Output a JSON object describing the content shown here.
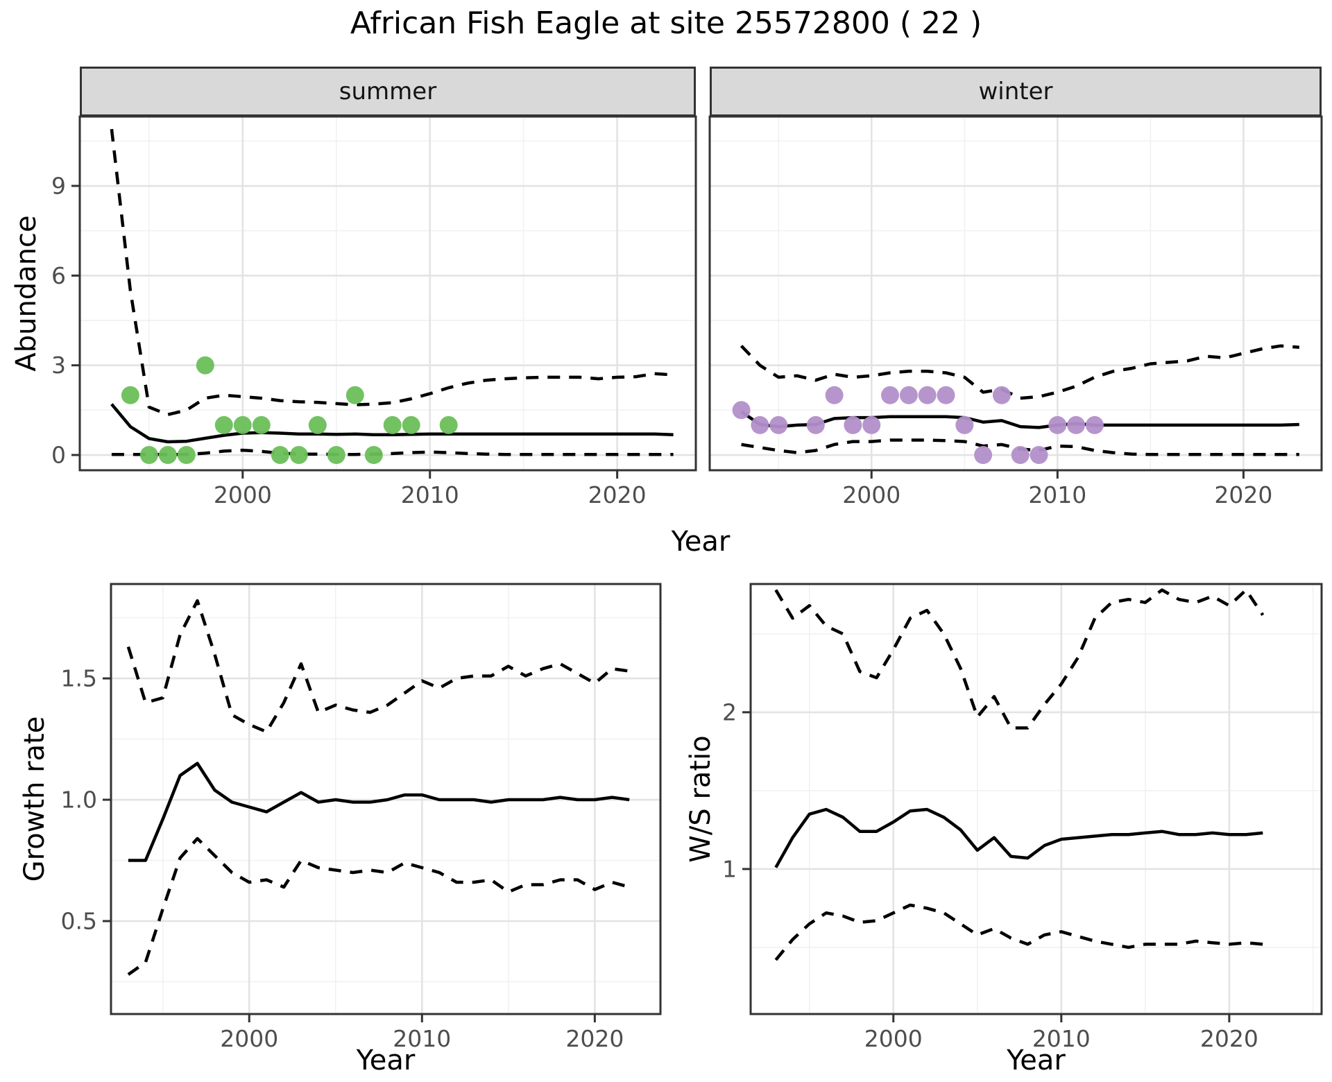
{
  "title": "African Fish Eagle at site 25572800 ( 22 )",
  "facets": {
    "summer_label": "summer",
    "winter_label": "winter"
  },
  "axis_labels": {
    "abundance": "Abundance",
    "year": "Year",
    "growth_rate": "Growth rate",
    "ws_ratio": "W/S ratio"
  },
  "colors": {
    "summer_points": "#6abf5a",
    "winter_points": "#b28fc9",
    "line": "#000000",
    "strip_bg": "#d9d9d9",
    "grid_major": "#e3e3e3",
    "grid_minor": "#f1f1f1",
    "panel_border": "#333333",
    "tick_text": "#4d4d4d"
  },
  "chart_data": [
    {
      "id": "abundance_summer",
      "type": "line",
      "facet": "summer",
      "xlabel": "Year",
      "ylabel": "Abundance",
      "xlim": [
        1991.3,
        2024.2
      ],
      "ylim": [
        -0.51,
        11.32
      ],
      "x_ticks": [
        2000,
        2010,
        2020
      ],
      "x_tick_labels": [
        "2000",
        "2010",
        "2020"
      ],
      "x_minor": [
        1995,
        2005,
        2015
      ],
      "y_ticks": [
        0,
        3,
        6,
        9
      ],
      "y_tick_labels": [
        "0",
        "3",
        "6",
        "9"
      ],
      "y_minor": [
        1.5,
        4.5,
        7.5,
        10.5
      ],
      "years": [
        1993,
        1994,
        1995,
        1996,
        1997,
        1998,
        1999,
        2000,
        2001,
        2002,
        2003,
        2004,
        2005,
        2006,
        2007,
        2008,
        2009,
        2010,
        2011,
        2012,
        2013,
        2014,
        2015,
        2016,
        2017,
        2018,
        2019,
        2020,
        2021,
        2022,
        2023
      ],
      "series": [
        {
          "name": "median",
          "style": "solid",
          "values": [
            1.7,
            0.95,
            0.55,
            0.44,
            0.46,
            0.56,
            0.66,
            0.73,
            0.75,
            0.73,
            0.7,
            0.7,
            0.69,
            0.7,
            0.68,
            0.68,
            0.69,
            0.7,
            0.7,
            0.7,
            0.7,
            0.7,
            0.7,
            0.7,
            0.7,
            0.7,
            0.7,
            0.7,
            0.7,
            0.7,
            0.68
          ]
        },
        {
          "name": "upper_ci",
          "style": "dashed",
          "values": [
            10.9,
            5.5,
            1.6,
            1.35,
            1.5,
            1.9,
            2.0,
            1.95,
            1.9,
            1.82,
            1.78,
            1.76,
            1.72,
            1.68,
            1.7,
            1.75,
            1.88,
            2.05,
            2.25,
            2.4,
            2.5,
            2.55,
            2.58,
            2.6,
            2.6,
            2.6,
            2.55,
            2.6,
            2.62,
            2.72,
            2.68
          ]
        },
        {
          "name": "lower_ci",
          "style": "dashed",
          "values": [
            0.02,
            0.02,
            0.02,
            0.02,
            0.02,
            0.06,
            0.13,
            0.16,
            0.12,
            0.06,
            0.03,
            0.03,
            0.02,
            0.02,
            0.03,
            0.05,
            0.08,
            0.1,
            0.08,
            0.05,
            0.03,
            0.02,
            0.02,
            0.02,
            0.02,
            0.02,
            0.02,
            0.02,
            0.02,
            0.02,
            0.02
          ]
        }
      ],
      "points": {
        "color": "#6abf5a",
        "data": [
          [
            1994,
            2
          ],
          [
            1995,
            0
          ],
          [
            1996,
            0
          ],
          [
            1997,
            0
          ],
          [
            1998,
            3
          ],
          [
            1999,
            1
          ],
          [
            2000,
            1
          ],
          [
            2001,
            1
          ],
          [
            2002,
            0
          ],
          [
            2003,
            0
          ],
          [
            2004,
            1
          ],
          [
            2005,
            0
          ],
          [
            2006,
            2
          ],
          [
            2007,
            0
          ],
          [
            2008,
            1
          ],
          [
            2009,
            1
          ],
          [
            2011,
            1
          ]
        ]
      }
    },
    {
      "id": "abundance_winter",
      "type": "line",
      "facet": "winter",
      "xlabel": "Year",
      "ylabel": "Abundance",
      "xlim": [
        1991.3,
        2024.2
      ],
      "ylim": [
        -0.51,
        11.32
      ],
      "x_ticks": [
        2000,
        2010,
        2020
      ],
      "x_tick_labels": [
        "2000",
        "2010",
        "2020"
      ],
      "x_minor": [
        1995,
        2005,
        2015
      ],
      "y_ticks": [
        0,
        3,
        6,
        9
      ],
      "y_tick_labels": [
        "0",
        "3",
        "6",
        "9"
      ],
      "y_minor": [
        1.5,
        4.5,
        7.5,
        10.5
      ],
      "years": [
        1993,
        1994,
        1995,
        1996,
        1997,
        1998,
        1999,
        2000,
        2001,
        2002,
        2003,
        2004,
        2005,
        2006,
        2007,
        2008,
        2009,
        2010,
        2011,
        2012,
        2013,
        2014,
        2015,
        2016,
        2017,
        2018,
        2019,
        2020,
        2021,
        2022,
        2023
      ],
      "series": [
        {
          "name": "median",
          "style": "solid",
          "values": [
            1.45,
            1.02,
            0.95,
            1.0,
            1.02,
            1.22,
            1.25,
            1.25,
            1.28,
            1.28,
            1.28,
            1.28,
            1.25,
            1.1,
            1.15,
            0.95,
            0.92,
            1.0,
            1.05,
            1.0,
            1.0,
            1.0,
            1.0,
            1.0,
            1.0,
            1.0,
            1.0,
            1.0,
            1.0,
            1.0,
            1.02
          ]
        },
        {
          "name": "upper_ci",
          "style": "dashed",
          "values": [
            3.65,
            3.0,
            2.6,
            2.65,
            2.5,
            2.7,
            2.6,
            2.65,
            2.75,
            2.8,
            2.8,
            2.75,
            2.6,
            2.1,
            2.2,
            1.9,
            1.95,
            2.1,
            2.3,
            2.6,
            2.8,
            2.9,
            3.05,
            3.1,
            3.15,
            3.3,
            3.25,
            3.4,
            3.55,
            3.65,
            3.6
          ]
        },
        {
          "name": "lower_ci",
          "style": "dashed",
          "values": [
            0.35,
            0.25,
            0.15,
            0.08,
            0.15,
            0.35,
            0.45,
            0.45,
            0.5,
            0.5,
            0.5,
            0.48,
            0.45,
            0.3,
            0.35,
            0.2,
            0.15,
            0.3,
            0.28,
            0.15,
            0.08,
            0.03,
            0.02,
            0.02,
            0.02,
            0.02,
            0.02,
            0.02,
            0.02,
            0.02,
            0.02
          ]
        }
      ],
      "points": {
        "color": "#b28fc9",
        "data": [
          [
            1993,
            1.5
          ],
          [
            1994,
            1
          ],
          [
            1995,
            1
          ],
          [
            1997,
            1
          ],
          [
            1998,
            2
          ],
          [
            1999,
            1
          ],
          [
            2000,
            1
          ],
          [
            2001,
            2
          ],
          [
            2002,
            2
          ],
          [
            2003,
            2
          ],
          [
            2004,
            2
          ],
          [
            2005,
            1
          ],
          [
            2006,
            0
          ],
          [
            2007,
            2
          ],
          [
            2008,
            0
          ],
          [
            2009,
            0
          ],
          [
            2010,
            1
          ],
          [
            2011,
            1
          ],
          [
            2012,
            1
          ]
        ]
      }
    },
    {
      "id": "growth_rate",
      "type": "line",
      "xlabel": "Year",
      "ylabel": "Growth rate",
      "xlim": [
        1992.0,
        2023.8
      ],
      "ylim": [
        0.117,
        1.889
      ],
      "x_ticks": [
        2000,
        2010,
        2020
      ],
      "x_tick_labels": [
        "2000",
        "2010",
        "2020"
      ],
      "x_minor": [
        1995,
        2005,
        2015
      ],
      "y_ticks": [
        0.5,
        1.0,
        1.5
      ],
      "y_tick_labels": [
        "0.5",
        "1.0",
        "1.5"
      ],
      "y_minor": [
        0.25,
        0.75,
        1.25,
        1.75
      ],
      "years": [
        1993,
        1994,
        1995,
        1996,
        1997,
        1998,
        1999,
        2000,
        2001,
        2002,
        2003,
        2004,
        2005,
        2006,
        2007,
        2008,
        2009,
        2010,
        2011,
        2012,
        2013,
        2014,
        2015,
        2016,
        2017,
        2018,
        2019,
        2020,
        2021,
        2022
      ],
      "series": [
        {
          "name": "median",
          "style": "solid",
          "values": [
            0.75,
            0.75,
            0.92,
            1.1,
            1.15,
            1.04,
            0.99,
            0.97,
            0.95,
            0.99,
            1.03,
            0.99,
            1.0,
            0.99,
            0.99,
            1.0,
            1.02,
            1.02,
            1.0,
            1.0,
            1.0,
            0.99,
            1.0,
            1.0,
            1.0,
            1.01,
            1.0,
            1.0,
            1.01,
            1.0
          ]
        },
        {
          "name": "upper_ci",
          "style": "dashed",
          "values": [
            1.63,
            1.4,
            1.42,
            1.68,
            1.82,
            1.6,
            1.35,
            1.31,
            1.28,
            1.4,
            1.56,
            1.36,
            1.39,
            1.37,
            1.36,
            1.39,
            1.44,
            1.49,
            1.46,
            1.5,
            1.51,
            1.51,
            1.55,
            1.51,
            1.54,
            1.56,
            1.52,
            1.48,
            1.54,
            1.53
          ]
        },
        {
          "name": "lower_ci",
          "style": "dashed",
          "values": [
            0.28,
            0.33,
            0.55,
            0.76,
            0.84,
            0.77,
            0.7,
            0.66,
            0.67,
            0.64,
            0.75,
            0.72,
            0.71,
            0.7,
            0.71,
            0.7,
            0.74,
            0.72,
            0.7,
            0.66,
            0.66,
            0.67,
            0.62,
            0.65,
            0.65,
            0.67,
            0.67,
            0.63,
            0.66,
            0.64
          ]
        }
      ]
    },
    {
      "id": "ws_ratio",
      "type": "line",
      "xlabel": "Year",
      "ylabel": "W/S ratio",
      "xlim": [
        1991.5,
        2025.5
      ],
      "ylim": [
        0.075,
        2.818
      ],
      "x_ticks": [
        2000,
        2010,
        2020
      ],
      "x_tick_labels": [
        "2000",
        "2010",
        "2020"
      ],
      "x_minor": [
        1995,
        2005,
        2015,
        2025
      ],
      "y_ticks": [
        1,
        2
      ],
      "y_tick_labels": [
        "1",
        "2"
      ],
      "y_minor": [
        0.5,
        1.5,
        2.5
      ],
      "years": [
        1993,
        1994,
        1995,
        1996,
        1997,
        1998,
        1999,
        2000,
        2001,
        2002,
        2003,
        2004,
        2005,
        2006,
        2007,
        2008,
        2009,
        2010,
        2011,
        2012,
        2013,
        2014,
        2015,
        2016,
        2017,
        2018,
        2019,
        2020,
        2021,
        2022
      ],
      "series": [
        {
          "name": "median",
          "style": "solid",
          "values": [
            1.01,
            1.2,
            1.35,
            1.38,
            1.33,
            1.24,
            1.24,
            1.3,
            1.37,
            1.38,
            1.33,
            1.25,
            1.12,
            1.2,
            1.08,
            1.07,
            1.15,
            1.19,
            1.2,
            1.21,
            1.22,
            1.22,
            1.23,
            1.24,
            1.22,
            1.22,
            1.23,
            1.22,
            1.22,
            1.23
          ]
        },
        {
          "name": "upper_ci",
          "style": "dashed",
          "values": [
            2.78,
            2.6,
            2.68,
            2.55,
            2.5,
            2.26,
            2.22,
            2.4,
            2.6,
            2.65,
            2.5,
            2.28,
            1.97,
            2.1,
            1.9,
            1.9,
            2.05,
            2.18,
            2.35,
            2.6,
            2.7,
            2.72,
            2.7,
            2.78,
            2.72,
            2.7,
            2.74,
            2.68,
            2.78,
            2.62
          ]
        },
        {
          "name": "lower_ci",
          "style": "dashed",
          "values": [
            0.42,
            0.55,
            0.65,
            0.72,
            0.7,
            0.66,
            0.67,
            0.72,
            0.77,
            0.75,
            0.72,
            0.65,
            0.58,
            0.62,
            0.56,
            0.52,
            0.58,
            0.6,
            0.57,
            0.54,
            0.52,
            0.5,
            0.52,
            0.52,
            0.52,
            0.54,
            0.53,
            0.52,
            0.53,
            0.52
          ]
        }
      ]
    }
  ]
}
